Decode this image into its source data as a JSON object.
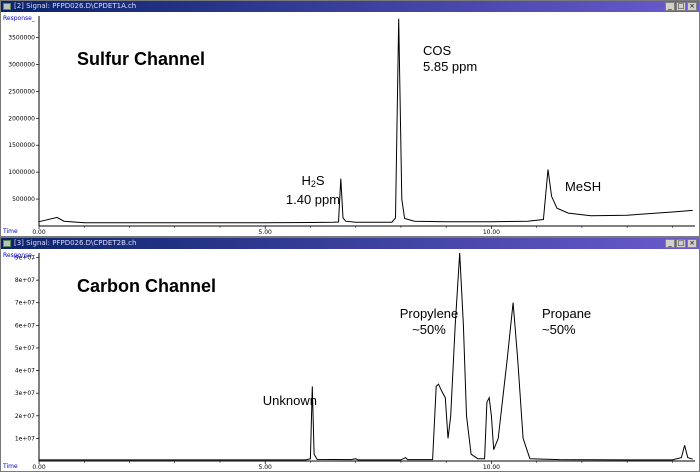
{
  "windows": [
    {
      "id": "top",
      "title": "[2] Signal: PFPD026.D\\CPDET1A.ch",
      "controls": [
        "_",
        "□",
        "×"
      ],
      "channel_title": "Sulfur Channel",
      "y_label": "Response_",
      "x_label": "Time",
      "annotations": [
        {
          "id": "h2s",
          "lines": [
            "H2S",
            "1.40 ppm"
          ]
        },
        {
          "id": "cos",
          "lines": [
            "COS",
            "5.85 ppm"
          ]
        },
        {
          "id": "mesh",
          "lines": [
            "MeSH"
          ]
        }
      ]
    },
    {
      "id": "bottom",
      "title": "[3] Signal: PFPD026.D\\CPDET2B.ch",
      "controls": [
        "_",
        "□",
        "×"
      ],
      "channel_title": "Carbon Channel",
      "y_label": "Response_",
      "x_label": "Time",
      "annotations": [
        {
          "id": "unknown",
          "lines": [
            "Unknown"
          ]
        },
        {
          "id": "propylene",
          "lines": [
            "Propylene",
            "~50%"
          ]
        },
        {
          "id": "propane",
          "lines": [
            "Propane",
            "~50%"
          ]
        }
      ]
    }
  ],
  "chart_data": [
    {
      "type": "line",
      "title": "Sulfur Channel",
      "xlabel": "Time",
      "ylabel": "Response_",
      "xlim": [
        0,
        14.5
      ],
      "ylim": [
        0,
        3900000
      ],
      "x_ticks": [
        {
          "v": 0,
          "label": "0.00"
        },
        {
          "v": 5,
          "label": "5.00"
        },
        {
          "v": 10,
          "label": "10.00"
        }
      ],
      "y_ticks": [
        {
          "v": 500000,
          "label": "500000"
        },
        {
          "v": 1000000,
          "label": "1000000"
        },
        {
          "v": 1500000,
          "label": "1500000"
        },
        {
          "v": 2000000,
          "label": "2000000"
        },
        {
          "v": 2500000,
          "label": "2500000"
        },
        {
          "v": 3000000,
          "label": "3000000"
        },
        {
          "v": 3500000,
          "label": "3500000"
        }
      ],
      "grid": false,
      "series": [
        {
          "points": [
            [
              0.0,
              80000
            ],
            [
              0.4,
              160000
            ],
            [
              0.55,
              90000
            ],
            [
              1.0,
              60000
            ],
            [
              2.0,
              60000
            ],
            [
              3.0,
              60000
            ],
            [
              4.0,
              60000
            ],
            [
              5.0,
              60000
            ],
            [
              6.0,
              65000
            ],
            [
              6.5,
              70000
            ],
            [
              6.62,
              75000
            ],
            [
              6.67,
              880000
            ],
            [
              6.72,
              150000
            ],
            [
              6.78,
              90000
            ],
            [
              7.0,
              70000
            ],
            [
              7.5,
              70000
            ],
            [
              7.8,
              70000
            ],
            [
              7.88,
              150000
            ],
            [
              7.95,
              3850000
            ],
            [
              8.02,
              500000
            ],
            [
              8.08,
              140000
            ],
            [
              8.3,
              90000
            ],
            [
              9.0,
              80000
            ],
            [
              10.0,
              80000
            ],
            [
              10.8,
              90000
            ],
            [
              11.15,
              120000
            ],
            [
              11.25,
              1050000
            ],
            [
              11.33,
              550000
            ],
            [
              11.45,
              330000
            ],
            [
              11.7,
              240000
            ],
            [
              12.2,
              190000
            ],
            [
              13.0,
              200000
            ],
            [
              14.0,
              260000
            ],
            [
              14.45,
              290000
            ]
          ]
        }
      ]
    },
    {
      "type": "line",
      "title": "Carbon Channel",
      "xlabel": "Time",
      "ylabel": "Response_",
      "xlim": [
        0,
        14.5
      ],
      "ylim": [
        0,
        92000000
      ],
      "x_ticks": [
        {
          "v": 0,
          "label": "0.00"
        },
        {
          "v": 5,
          "label": "5.00"
        },
        {
          "v": 10,
          "label": "10.00"
        }
      ],
      "y_ticks": [
        {
          "v": 10000000,
          "label": "1e+07"
        },
        {
          "v": 20000000,
          "label": "2e+07"
        },
        {
          "v": 30000000,
          "label": "3e+07"
        },
        {
          "v": 40000000,
          "label": "4e+07"
        },
        {
          "v": 50000000,
          "label": "5e+07"
        },
        {
          "v": 60000000,
          "label": "6e+07"
        },
        {
          "v": 70000000,
          "label": "7e+07"
        },
        {
          "v": 80000000,
          "label": "8e+07"
        },
        {
          "v": 90000000,
          "label": "9e+07"
        }
      ],
      "grid": false,
      "series": [
        {
          "points": [
            [
              0.0,
              500000
            ],
            [
              2.0,
              500000
            ],
            [
              4.0,
              500000
            ],
            [
              5.9,
              500000
            ],
            [
              6.0,
              1000000
            ],
            [
              6.04,
              33000000
            ],
            [
              6.08,
              3000000
            ],
            [
              6.15,
              700000
            ],
            [
              6.9,
              600000
            ],
            [
              7.0,
              1000000
            ],
            [
              7.05,
              500000
            ],
            [
              8.0,
              500000
            ],
            [
              8.1,
              1500000
            ],
            [
              8.15,
              600000
            ],
            [
              8.7,
              600000
            ],
            [
              8.78,
              33000000
            ],
            [
              8.83,
              34000000
            ],
            [
              8.9,
              31000000
            ],
            [
              8.98,
              28000000
            ],
            [
              9.04,
              10000000
            ],
            [
              9.1,
              20000000
            ],
            [
              9.2,
              60000000
            ],
            [
              9.3,
              92000000
            ],
            [
              9.38,
              60000000
            ],
            [
              9.45,
              20000000
            ],
            [
              9.55,
              3000000
            ],
            [
              9.7,
              1000000
            ],
            [
              9.85,
              1000000
            ],
            [
              9.9,
              26000000
            ],
            [
              9.95,
              28000000
            ],
            [
              10.0,
              20000000
            ],
            [
              10.05,
              5000000
            ],
            [
              10.15,
              10000000
            ],
            [
              10.35,
              45000000
            ],
            [
              10.48,
              70000000
            ],
            [
              10.58,
              45000000
            ],
            [
              10.7,
              10000000
            ],
            [
              10.85,
              1000000
            ],
            [
              11.5,
              600000
            ],
            [
              13.0,
              500000
            ],
            [
              14.0,
              500000
            ],
            [
              14.2,
              1500000
            ],
            [
              14.27,
              7000000
            ],
            [
              14.34,
              1500000
            ],
            [
              14.45,
              800000
            ]
          ]
        }
      ]
    }
  ]
}
